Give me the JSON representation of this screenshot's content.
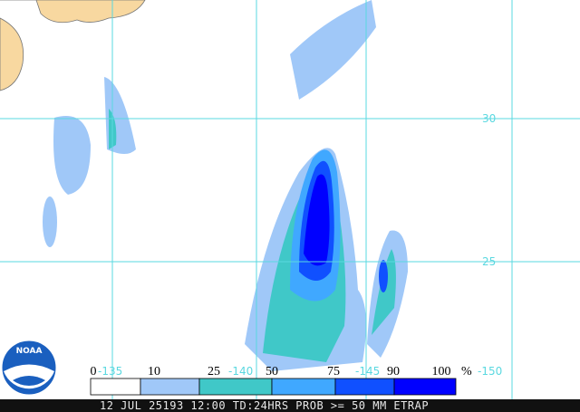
{
  "map": {
    "latitude_labels": [
      "30",
      "25"
    ],
    "longitude_labels": [
      "-135",
      "-140",
      "-145",
      "-150"
    ],
    "logo": "NOAA",
    "legend": {
      "labels": [
        0,
        10,
        25,
        50,
        75,
        90,
        100
      ],
      "unit": "%",
      "colors": [
        "#ffffff",
        "#a0c8f8",
        "#40c8c8",
        "#40a8ff",
        "#1050ff",
        "#0000ff",
        "#0000a8"
      ]
    },
    "footer": "12 JUL 25193 12:00 TD:24HRS PROB >= 50 MM ETRAP"
  }
}
